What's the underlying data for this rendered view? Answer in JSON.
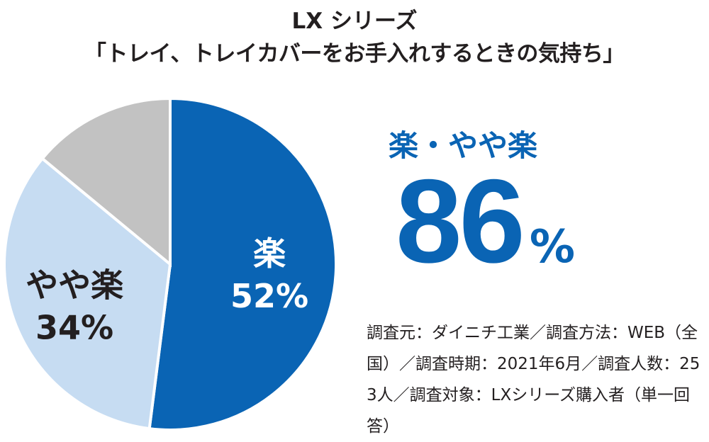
{
  "title_line1": "LX シリーズ",
  "title_line2": "「トレイ、トレイカバーをお手入れするときの気持ち」",
  "callout": {
    "label": "楽・やや楽",
    "value": "86",
    "unit": "%"
  },
  "source_note": "調査元：ダイニチ工業／調査方法：WEB（全国）／調査時期：2021年6月／調査人数：253人／調査対象：LXシリーズ購入者（単一回答）",
  "colors": {
    "accent": "#0a64b4",
    "light": "#c6dcf2",
    "gray": "#c2c2c2",
    "text": "#231f20"
  },
  "chart_data": {
    "type": "pie",
    "start": "12 o'clock, clockwise",
    "slices": [
      {
        "label": "楽",
        "value": 52,
        "value_label": "52%",
        "color": "#0a64b4",
        "text_color": "#ffffff"
      },
      {
        "label": "やや楽",
        "value": 34,
        "value_label": "34%",
        "color": "#c6dcf2",
        "text_color": "#231f20"
      },
      {
        "label": "",
        "value": 14,
        "value_label": "",
        "color": "#c2c2c2",
        "text_color": "#231f20"
      }
    ]
  }
}
